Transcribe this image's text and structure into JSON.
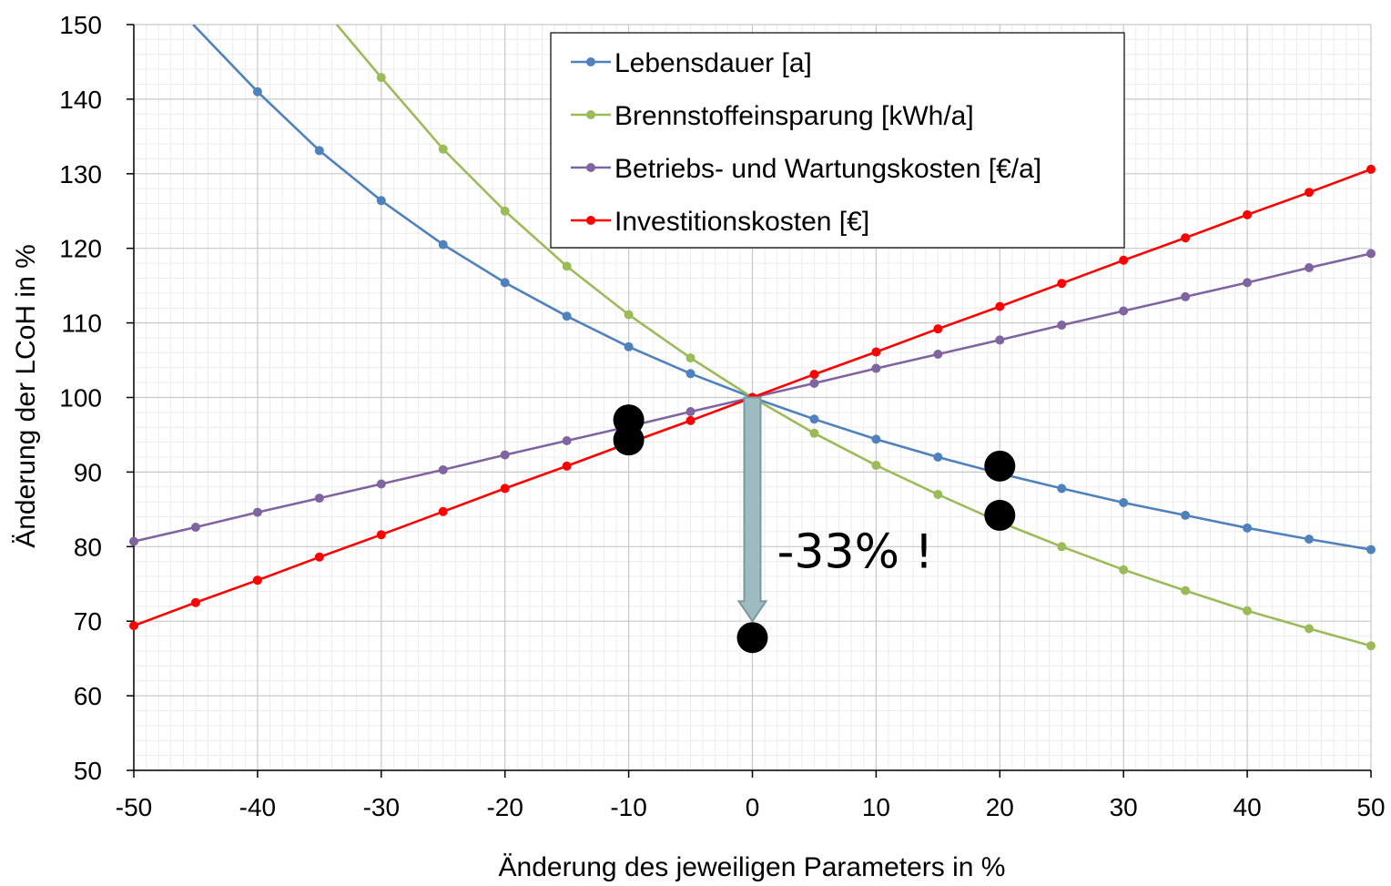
{
  "chart_data": {
    "type": "line",
    "title": "",
    "xlabel": "Änderung des jeweiligen Parameters in %",
    "ylabel": "Änderung  der  LCoH in %",
    "xlim": [
      -50,
      50
    ],
    "ylim": [
      50,
      150
    ],
    "x_ticks": [
      -50,
      -40,
      -30,
      -20,
      -10,
      0,
      10,
      20,
      30,
      40,
      50
    ],
    "y_ticks": [
      50,
      60,
      70,
      80,
      90,
      100,
      110,
      120,
      130,
      140,
      150
    ],
    "x_tick_labels": [
      "-50",
      "-40",
      "-30",
      "-20",
      "-10",
      "0",
      "10",
      "20",
      "30",
      "40",
      "50"
    ],
    "y_tick_labels": [
      "50",
      "60",
      "70",
      "80",
      "90",
      "100",
      "110",
      "120",
      "130",
      "140",
      "150"
    ],
    "grid": true,
    "legend_position": "top-center",
    "x": [
      -50,
      -45,
      -40,
      -35,
      -30,
      -25,
      -20,
      -15,
      -10,
      -5,
      0,
      5,
      10,
      15,
      20,
      25,
      30,
      35,
      40,
      45,
      50
    ],
    "series": [
      {
        "name": "Lebensdauer [a]",
        "color": "#4f81bd",
        "values": [
          null,
          null,
          141.0,
          133.1,
          126.4,
          120.5,
          115.4,
          110.9,
          106.8,
          103.2,
          100.0,
          97.1,
          94.4,
          92.0,
          89.8,
          87.8,
          85.9,
          84.2,
          82.5,
          81.0,
          79.6
        ],
        "curve_start": {
          "x": -45.2,
          "y": 150
        }
      },
      {
        "name": "Brennstoffeinsparung [kWh/a]",
        "color": "#9bbb59",
        "values": [
          null,
          null,
          null,
          null,
          142.9,
          133.3,
          125.0,
          117.6,
          111.1,
          105.3,
          100.0,
          95.2,
          90.9,
          87.0,
          83.3,
          80.0,
          76.9,
          74.1,
          71.4,
          69.0,
          66.7
        ],
        "curve_start": {
          "x": -33.6,
          "y": 150
        }
      },
      {
        "name": "Betriebs- und Wartungskosten [€/a]",
        "color": "#8064a2",
        "values": [
          80.7,
          82.6,
          84.6,
          86.5,
          88.4,
          90.3,
          92.3,
          94.2,
          96.1,
          98.1,
          100.0,
          101.9,
          103.9,
          105.8,
          107.7,
          109.7,
          111.6,
          113.5,
          115.4,
          117.4,
          119.3
        ]
      },
      {
        "name": "Investitionskosten [€]",
        "color": "#ff0000",
        "values": [
          69.4,
          72.5,
          75.5,
          78.6,
          81.6,
          84.7,
          87.8,
          90.8,
          93.9,
          96.9,
          100.0,
          103.1,
          106.1,
          109.2,
          112.2,
          115.3,
          118.4,
          121.4,
          124.5,
          127.5,
          130.6
        ]
      }
    ],
    "highlight_points": [
      {
        "x": -10,
        "y": 97.0
      },
      {
        "x": -10,
        "y": 94.3
      },
      {
        "x": 20,
        "y": 90.8
      },
      {
        "x": 20,
        "y": 84.2
      },
      {
        "x": 0,
        "y": 67.8
      }
    ],
    "arrow": {
      "from": {
        "x": 0,
        "y": 100
      },
      "to": {
        "x": 0,
        "y": 70
      },
      "color": "#9ebbc1"
    },
    "annotations": [
      {
        "text": "-33% !",
        "x": 2,
        "y": 80
      }
    ]
  }
}
